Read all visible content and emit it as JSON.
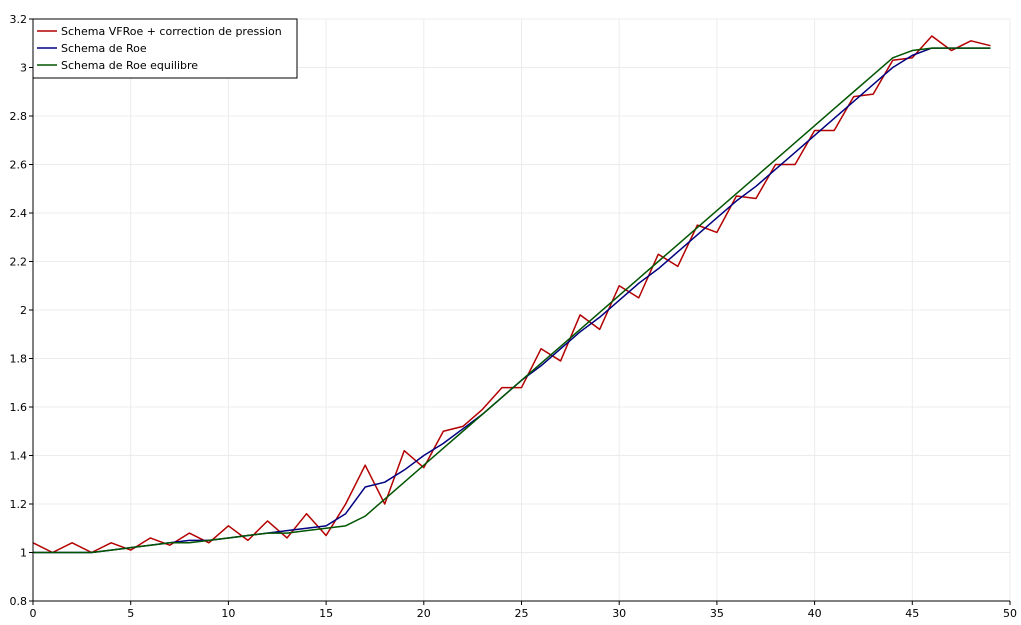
{
  "chart_data": {
    "type": "line",
    "title": "",
    "xlabel": "",
    "ylabel": "",
    "xlim": [
      0,
      50
    ],
    "ylim": [
      0.8,
      3.2
    ],
    "xticks": [
      0,
      5,
      10,
      15,
      20,
      25,
      30,
      35,
      40,
      45,
      50
    ],
    "yticks": [
      0.8,
      1,
      1.2,
      1.4,
      1.6,
      1.8,
      2,
      2.2,
      2.4,
      2.6,
      2.8,
      3,
      3.2
    ],
    "xtick_labels": [
      "0",
      "5",
      "10",
      "15",
      "20",
      "25",
      "30",
      "35",
      "40",
      "45",
      "50"
    ],
    "ytick_labels": [
      "0.8",
      "1",
      "1.2",
      "1.4",
      "1.6",
      "1.8",
      "2",
      "2.2",
      "2.4",
      "2.6",
      "2.8",
      "3",
      "3.2"
    ],
    "grid": true,
    "legend_position": "top-left",
    "series": [
      {
        "name": "Schema VFRoe + correction de pression",
        "color": "#b30000",
        "x": [
          0,
          1,
          2,
          3,
          4,
          5,
          6,
          7,
          8,
          9,
          10,
          11,
          12,
          13,
          14,
          15,
          16,
          17,
          18,
          19,
          20,
          21,
          22,
          23,
          24,
          25,
          26,
          27,
          28,
          29,
          30,
          31,
          32,
          33,
          34,
          35,
          36,
          37,
          38,
          39,
          40,
          41,
          42,
          43,
          44,
          45,
          46,
          47,
          48,
          49
        ],
        "values": [
          1.04,
          1.0,
          1.04,
          1.0,
          1.04,
          1.01,
          1.06,
          1.03,
          1.08,
          1.04,
          1.11,
          1.05,
          1.13,
          1.06,
          1.16,
          1.07,
          1.2,
          1.36,
          1.2,
          1.42,
          1.35,
          1.5,
          1.52,
          1.59,
          1.68,
          1.68,
          1.84,
          1.79,
          1.98,
          1.92,
          2.1,
          2.05,
          2.23,
          2.18,
          2.35,
          2.32,
          2.47,
          2.46,
          2.6,
          2.6,
          2.74,
          2.74,
          2.88,
          2.89,
          3.03,
          3.04,
          3.13,
          3.07,
          3.11,
          3.09
        ]
      },
      {
        "name": "Schema de Roe",
        "color": "#000080",
        "x": [
          0,
          1,
          2,
          3,
          4,
          5,
          6,
          7,
          8,
          9,
          10,
          11,
          12,
          13,
          14,
          15,
          16,
          17,
          18,
          19,
          20,
          21,
          22,
          23,
          24,
          25,
          26,
          27,
          28,
          29,
          30,
          31,
          32,
          33,
          34,
          35,
          36,
          37,
          38,
          39,
          40,
          41,
          42,
          43,
          44,
          45,
          46,
          47,
          48,
          49
        ],
        "values": [
          1.0,
          1.0,
          1.0,
          1.0,
          1.01,
          1.02,
          1.03,
          1.04,
          1.05,
          1.05,
          1.06,
          1.07,
          1.08,
          1.09,
          1.1,
          1.11,
          1.16,
          1.27,
          1.29,
          1.34,
          1.4,
          1.45,
          1.51,
          1.57,
          1.64,
          1.71,
          1.77,
          1.84,
          1.91,
          1.97,
          2.04,
          2.11,
          2.17,
          2.24,
          2.31,
          2.38,
          2.45,
          2.51,
          2.58,
          2.65,
          2.72,
          2.79,
          2.86,
          2.93,
          3.0,
          3.05,
          3.08,
          3.08,
          3.08,
          3.08
        ]
      },
      {
        "name": "Schema de Roe equilibre",
        "color": "#005500",
        "x": [
          0,
          1,
          2,
          3,
          4,
          5,
          6,
          7,
          8,
          9,
          10,
          11,
          12,
          13,
          14,
          15,
          16,
          17,
          18,
          19,
          20,
          21,
          22,
          23,
          24,
          25,
          26,
          27,
          28,
          29,
          30,
          31,
          32,
          33,
          34,
          35,
          36,
          37,
          38,
          39,
          40,
          41,
          42,
          43,
          44,
          45,
          46,
          47,
          48,
          49
        ],
        "values": [
          1.0,
          1.0,
          1.0,
          1.0,
          1.01,
          1.02,
          1.03,
          1.04,
          1.04,
          1.05,
          1.06,
          1.07,
          1.08,
          1.08,
          1.09,
          1.1,
          1.11,
          1.15,
          1.22,
          1.29,
          1.36,
          1.43,
          1.5,
          1.57,
          1.64,
          1.71,
          1.78,
          1.85,
          1.92,
          1.99,
          2.06,
          2.13,
          2.2,
          2.27,
          2.34,
          2.41,
          2.48,
          2.55,
          2.62,
          2.69,
          2.76,
          2.83,
          2.9,
          2.97,
          3.04,
          3.07,
          3.08,
          3.08,
          3.08,
          3.08
        ]
      }
    ]
  }
}
